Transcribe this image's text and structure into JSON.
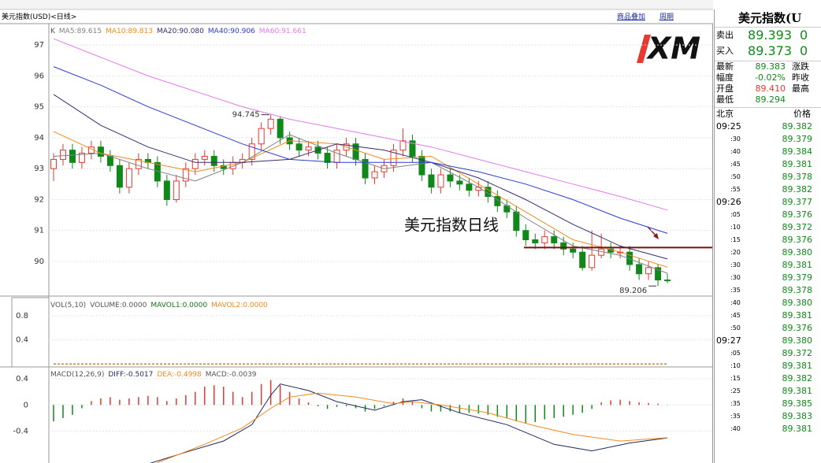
{
  "header": {
    "symbol": "美元指数(USD)<日线>",
    "links": [
      "商品叠加",
      "周期"
    ],
    "logo": "XM"
  },
  "chart_data": [
    {
      "type": "candlestick",
      "legend_prefix": "K",
      "xlim": [
        -0.5,
        69.75
      ],
      "ylim": [
        88.88,
        97.69
      ],
      "yticks": [
        90,
        91,
        92,
        93,
        94,
        95,
        96,
        97
      ],
      "grid": true,
      "up_color": "#e8382f",
      "down_color": "#10891a",
      "open": [
        93.0,
        93.3,
        93.6,
        93.2,
        93.5,
        93.7,
        93.4,
        93.1,
        92.4,
        93.0,
        93.3,
        93.2,
        92.6,
        92.0,
        92.6,
        93.0,
        93.3,
        93.4,
        93.1,
        93.0,
        93.2,
        93.3,
        93.8,
        94.3,
        94.6,
        94.0,
        93.8,
        93.6,
        93.7,
        93.5,
        93.2,
        93.6,
        93.8,
        93.3,
        92.7,
        92.9,
        93.1,
        93.6,
        93.9,
        93.4,
        92.8,
        92.4,
        92.8,
        92.6,
        92.5,
        92.3,
        92.4,
        92.1,
        91.8,
        91.6,
        91.0,
        90.7,
        90.6,
        90.8,
        90.6,
        90.4,
        90.3,
        89.8,
        90.2,
        90.4,
        90.3,
        90.3,
        89.9,
        89.6,
        89.8,
        89.4
      ],
      "high": [
        93.5,
        93.8,
        93.8,
        93.7,
        93.9,
        93.9,
        93.6,
        93.3,
        93.2,
        93.5,
        93.5,
        93.4,
        92.8,
        92.8,
        93.2,
        93.5,
        93.6,
        93.6,
        93.3,
        93.4,
        93.5,
        94.0,
        94.5,
        94.745,
        94.7,
        94.2,
        94.0,
        93.9,
        93.9,
        93.7,
        93.8,
        94.0,
        94.0,
        93.5,
        93.1,
        93.3,
        93.8,
        94.3,
        94.1,
        93.6,
        93.0,
        93.0,
        93.0,
        92.8,
        92.7,
        92.6,
        92.6,
        92.3,
        92.0,
        91.8,
        91.2,
        90.9,
        91.0,
        91.0,
        90.8,
        90.6,
        90.5,
        91.0,
        90.9,
        90.6,
        90.5,
        90.5,
        90.1,
        90.0,
        89.9,
        89.6
      ],
      "low": [
        92.6,
        93.1,
        93.0,
        93.0,
        93.3,
        93.2,
        92.9,
        92.2,
        92.2,
        92.8,
        93.0,
        92.4,
        91.8,
        91.9,
        92.4,
        92.8,
        93.1,
        92.9,
        92.8,
        92.8,
        93.0,
        93.1,
        93.6,
        94.1,
        93.8,
        93.6,
        93.4,
        93.4,
        93.3,
        93.0,
        93.0,
        93.4,
        93.1,
        92.5,
        92.5,
        92.7,
        92.9,
        93.4,
        93.2,
        92.6,
        92.2,
        92.2,
        92.4,
        92.3,
        92.1,
        92.1,
        91.9,
        91.6,
        91.4,
        90.8,
        90.5,
        90.4,
        90.4,
        90.4,
        90.2,
        90.1,
        89.7,
        89.7,
        90.1,
        90.1,
        90.1,
        89.7,
        89.4,
        89.4,
        89.206,
        89.3
      ],
      "close": [
        93.3,
        93.6,
        93.2,
        93.5,
        93.7,
        93.4,
        93.1,
        92.4,
        93.0,
        93.3,
        93.2,
        92.6,
        92.0,
        92.6,
        93.0,
        93.3,
        93.4,
        93.1,
        93.0,
        93.2,
        93.3,
        93.8,
        94.3,
        94.6,
        94.0,
        93.8,
        93.6,
        93.7,
        93.5,
        93.2,
        93.6,
        93.8,
        93.3,
        92.7,
        92.9,
        93.1,
        93.6,
        93.9,
        93.4,
        92.8,
        92.4,
        92.8,
        92.6,
        92.5,
        92.3,
        92.4,
        92.1,
        91.8,
        91.6,
        91.0,
        90.7,
        90.6,
        90.8,
        90.6,
        90.4,
        90.3,
        89.8,
        90.2,
        90.4,
        90.3,
        90.3,
        89.9,
        89.6,
        89.8,
        89.4,
        89.38
      ],
      "series": [
        {
          "name": "MA5:89.615",
          "color": "#808080",
          "x": [
            0,
            5,
            10,
            15,
            20,
            25,
            30,
            35,
            40,
            45,
            50,
            55,
            60,
            65
          ],
          "values": [
            93.4,
            93.5,
            93.0,
            92.6,
            93.2,
            94.1,
            93.5,
            93.0,
            93.2,
            92.4,
            91.4,
            90.5,
            90.2,
            89.615
          ]
        },
        {
          "name": "MA10:89.813",
          "color": "#f08a1e",
          "x": [
            0,
            5,
            10,
            15,
            20,
            25,
            30,
            35,
            40,
            45,
            50,
            55,
            60,
            65
          ],
          "values": [
            94.2,
            93.5,
            93.2,
            92.9,
            93.2,
            93.9,
            93.8,
            93.3,
            93.4,
            92.5,
            91.6,
            90.7,
            90.3,
            89.813
          ]
        },
        {
          "name": "MA20:90.080",
          "color": "#3a2a6e",
          "x": [
            0,
            5,
            10,
            15,
            20,
            25,
            30,
            35,
            40,
            45,
            50,
            55,
            60,
            65
          ],
          "values": [
            95.4,
            94.4,
            93.7,
            93.2,
            93.2,
            93.3,
            93.8,
            93.6,
            93.2,
            92.7,
            92.0,
            91.2,
            90.5,
            90.08
          ]
        },
        {
          "name": "MA40:90.906",
          "color": "#2a3ad0",
          "x": [
            0,
            5,
            10,
            15,
            20,
            25,
            30,
            35,
            40,
            45,
            50,
            55,
            60,
            65
          ],
          "values": [
            96.3,
            95.7,
            95.0,
            94.4,
            93.8,
            93.3,
            93.2,
            93.2,
            93.2,
            92.9,
            92.5,
            92.0,
            91.4,
            90.906
          ]
        },
        {
          "name": "MA60:91.661",
          "color": "#e27ae8",
          "x": [
            0,
            5,
            10,
            15,
            20,
            25,
            30,
            35,
            40,
            45,
            50,
            55,
            60,
            65
          ],
          "values": [
            97.2,
            96.6,
            96.0,
            95.5,
            95.0,
            94.6,
            94.3,
            94.0,
            93.7,
            93.3,
            92.9,
            92.5,
            92.1,
            91.661
          ]
        }
      ],
      "annotations": [
        {
          "x": 23,
          "y": 94.745
        },
        {
          "x": 64,
          "y": 89.206
        }
      ],
      "hline": {
        "value": 90.45,
        "color": "#7a1010"
      },
      "caption": "美元指数日线"
    },
    {
      "type": "volume",
      "title": "VOL(5,10)",
      "xlim": [
        -0.5,
        69.75
      ],
      "ylim": [
        -0.05,
        1.1
      ],
      "yticks": [
        0.4,
        0.8
      ],
      "grid": true,
      "series": [
        {
          "name": "VOLUME:0.0000",
          "color": "#555555",
          "x": [
            0,
            65
          ],
          "values": [
            0,
            0
          ]
        },
        {
          "name": "MAVOL1:0.0000",
          "color": "#1a6e1a",
          "x": [
            0,
            65
          ],
          "values": [
            0,
            0
          ]
        },
        {
          "name": "MAVOL2:0.0000",
          "color": "#f08a1e",
          "x": [
            0,
            65
          ],
          "values": [
            0,
            0
          ]
        }
      ]
    },
    {
      "type": "macd",
      "title": "MACD(12,26,9)",
      "xlim": [
        -0.5,
        69.75
      ],
      "ylim": [
        -0.885,
        0.58
      ],
      "yticks": [
        0.4,
        0,
        -0.4
      ],
      "grid": true,
      "series": [
        {
          "name": "DIFF:-0.5017",
          "color": "#1e2a5a",
          "x": [
            10,
            14,
            18,
            21,
            23,
            24,
            27,
            30,
            34,
            37,
            39,
            43,
            48,
            53,
            57,
            61,
            65
          ],
          "values": [
            -0.9,
            -0.72,
            -0.55,
            -0.3,
            0.15,
            0.32,
            0.22,
            0.05,
            -0.08,
            0.05,
            0.08,
            -0.12,
            -0.3,
            -0.6,
            -0.7,
            -0.58,
            -0.5017
          ]
        },
        {
          "name": "DEA:-0.4998",
          "color": "#f08a1e",
          "x": [
            11,
            16,
            20,
            23,
            25,
            28,
            32,
            36,
            38,
            41,
            46,
            51,
            55,
            60,
            65
          ],
          "values": [
            -0.88,
            -0.6,
            -0.35,
            -0.05,
            0.12,
            0.18,
            0.12,
            0.02,
            0.05,
            0.0,
            -0.12,
            -0.32,
            -0.45,
            -0.55,
            -0.4998
          ]
        }
      ],
      "histogram": {
        "name": "MACD:-0.0039",
        "up_color": "#e8382f",
        "down_color": "#10891a",
        "values": [
          -0.25,
          -0.2,
          -0.15,
          -0.05,
          0.06,
          0.1,
          0.12,
          0.08,
          0.1,
          0.12,
          0.14,
          0.12,
          0.06,
          0.1,
          0.15,
          0.2,
          0.28,
          0.3,
          0.28,
          0.2,
          0.12,
          0.2,
          0.32,
          0.38,
          0.3,
          0.2,
          0.1,
          0.04,
          -0.02,
          -0.06,
          -0.03,
          -0.02,
          -0.05,
          -0.1,
          -0.06,
          -0.02,
          0.05,
          0.1,
          0.06,
          -0.05,
          -0.1,
          -0.1,
          -0.1,
          -0.12,
          -0.12,
          -0.13,
          -0.15,
          -0.18,
          -0.2,
          -0.25,
          -0.28,
          -0.26,
          -0.22,
          -0.2,
          -0.18,
          -0.15,
          -0.12,
          -0.06,
          0.04,
          0.07,
          0.08,
          0.06,
          0.04,
          0.03,
          0.02,
          -0.0039
        ]
      }
    }
  ],
  "quote_panel": {
    "title": "美元指数(U",
    "quotes": [
      {
        "label": "卖出",
        "price": "89.393",
        "change": "0"
      },
      {
        "label": "买入",
        "price": "89.373",
        "change": "0"
      }
    ],
    "stats": [
      {
        "label": "最新",
        "value": "89.383",
        "color": "#10891a",
        "extra": "涨跌"
      },
      {
        "label": "幅度",
        "value": "-0.02%",
        "color": "#10891a",
        "extra": "昨收"
      },
      {
        "label": "开盘",
        "value": "89.410",
        "color": "#e8382f",
        "extra": "最高"
      },
      {
        "label": "最低",
        "value": "89.294",
        "color": "#10891a"
      }
    ],
    "ticks_header": [
      "北京",
      "价格"
    ],
    "ticks": [
      [
        "09:25",
        "89.382"
      ],
      [
        ":30",
        "89.379"
      ],
      [
        ":40",
        "89.384"
      ],
      [
        ":45",
        "89.381"
      ],
      [
        ":50",
        "89.378"
      ],
      [
        ":55",
        "89.382"
      ],
      [
        "09:26",
        "89.377"
      ],
      [
        ":05",
        "89.376"
      ],
      [
        ":10",
        "89.372"
      ],
      [
        ":15",
        "89.376"
      ],
      [
        ":20",
        "89.380"
      ],
      [
        ":30",
        "89.381"
      ],
      [
        ":30",
        "89.379"
      ],
      [
        ":35",
        "89.378"
      ],
      [
        ":40",
        "89.380"
      ],
      [
        ":45",
        "89.381"
      ],
      [
        ":50",
        "89.376"
      ],
      [
        "09:27",
        "89.380"
      ],
      [
        ":05",
        "89.372"
      ],
      [
        ":10",
        "89.381"
      ],
      [
        ":15",
        "89.382"
      ],
      [
        ":25",
        "89.381"
      ],
      [
        ":35",
        "89.385"
      ],
      [
        ":35",
        "89.383"
      ],
      [
        ":40",
        "89.381"
      ]
    ]
  }
}
